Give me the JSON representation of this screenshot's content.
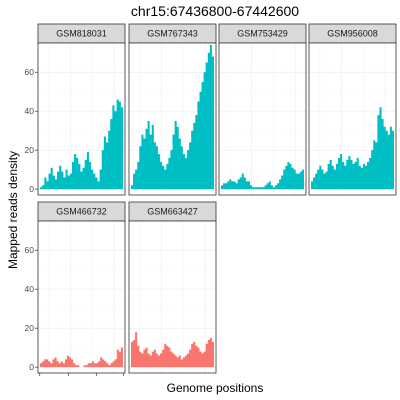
{
  "chart_data": {
    "type": "area",
    "title": "chr15:67436800-67442600",
    "xlabel": "Genome positions",
    "ylabel": "Mapped reads density",
    "ylim": [
      -3,
      75
    ],
    "yticks": [
      0,
      20,
      40,
      60
    ],
    "grid": true,
    "legend": "none",
    "facet_layout": "4 columns × 2 rows, shared axes",
    "group_colors": {
      "cyan": "#00BFC4",
      "salmon": "#F8766D"
    },
    "facets": [
      {
        "name": "GSM818031",
        "color": "#00BFC4",
        "values": [
          1,
          2,
          6,
          4,
          8,
          11,
          7,
          5,
          9,
          12,
          9,
          6,
          10,
          7,
          8,
          14,
          18,
          16,
          13,
          9,
          11,
          15,
          19,
          14,
          10,
          8,
          6,
          4,
          10,
          20,
          27,
          24,
          30,
          36,
          43,
          40,
          46,
          45,
          42
        ]
      },
      {
        "name": "GSM767343",
        "color": "#00BFC4",
        "values": [
          2,
          8,
          10,
          14,
          22,
          28,
          26,
          31,
          35,
          28,
          33,
          24,
          22,
          18,
          14,
          12,
          10,
          13,
          16,
          20,
          28,
          35,
          32,
          26,
          22,
          18,
          16,
          20,
          24,
          30,
          34,
          38,
          45,
          50,
          55,
          60,
          65,
          70,
          74,
          68
        ]
      },
      {
        "name": "GSM753429",
        "color": "#00BFC4",
        "values": [
          2,
          3,
          3,
          4,
          5,
          4,
          4,
          3,
          5,
          6,
          8,
          6,
          4,
          4,
          2,
          1,
          1,
          1,
          1,
          1,
          1,
          2,
          3,
          4,
          2,
          1,
          2,
          3,
          5,
          7,
          10,
          12,
          14,
          13,
          11,
          10,
          8,
          8,
          9,
          10
        ]
      },
      {
        "name": "GSM956008",
        "color": "#00BFC4",
        "values": [
          4,
          6,
          8,
          10,
          12,
          10,
          8,
          9,
          13,
          15,
          12,
          10,
          13,
          16,
          18,
          14,
          12,
          15,
          17,
          15,
          13,
          14,
          16,
          12,
          11,
          13,
          12,
          14,
          16,
          20,
          25,
          24,
          38,
          42,
          36,
          32,
          30,
          28,
          32,
          30
        ]
      },
      {
        "name": "GSM466732",
        "color": "#F8766D",
        "values": [
          2,
          3,
          4,
          4,
          3,
          2,
          4,
          5,
          3,
          2,
          3,
          2,
          4,
          6,
          5,
          4,
          2,
          1,
          1,
          0,
          0,
          1,
          1,
          2,
          2,
          3,
          2,
          2,
          3,
          5,
          4,
          3,
          2,
          1,
          2,
          3,
          4,
          9,
          8,
          10
        ]
      },
      {
        "name": "GSM663427",
        "color": "#F8766D",
        "values": [
          13,
          14,
          18,
          11,
          8,
          7,
          9,
          10,
          7,
          6,
          8,
          9,
          7,
          6,
          7,
          9,
          12,
          11,
          10,
          8,
          7,
          6,
          5,
          6,
          4,
          5,
          6,
          7,
          9,
          12,
          13,
          11,
          10,
          8,
          7,
          8,
          12,
          14,
          15,
          13
        ]
      }
    ]
  }
}
